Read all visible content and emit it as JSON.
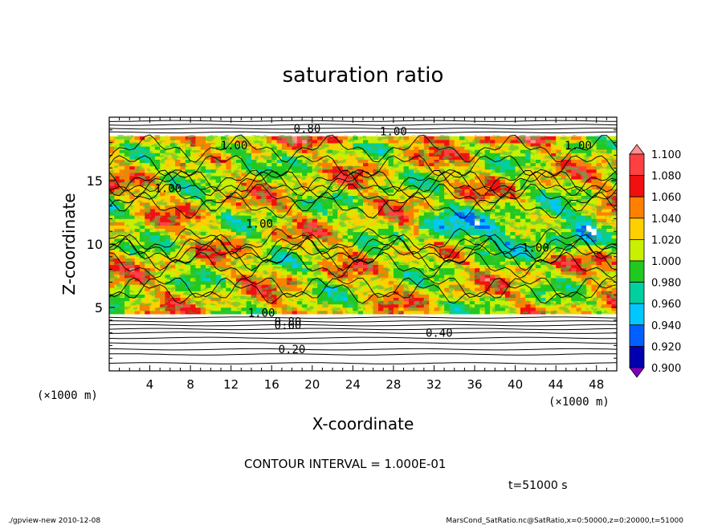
{
  "chart_data": {
    "type": "heatmap",
    "title": "saturation ratio",
    "xlabel": "X-coordinate",
    "ylabel": "Z-coordinate",
    "x_unit_left": "(×1000 m)",
    "x_unit_right": "(×1000 m)",
    "xlim": [
      0,
      50
    ],
    "ylim": [
      0,
      20
    ],
    "x_ticks": [
      "4",
      "8",
      "12",
      "16",
      "20",
      "24",
      "28",
      "32",
      "36",
      "40",
      "44",
      "48"
    ],
    "y_ticks": [
      "5",
      "10",
      "15"
    ],
    "contour_interval": "CONTOUR INTERVAL = 1.000E-01",
    "time_label": "t=51000 s",
    "contour_labels": [
      {
        "text": "0.20",
        "x": 18.0,
        "y": 1.7
      },
      {
        "text": "0.40",
        "x": 32.5,
        "y": 3.0
      },
      {
        "text": "0.60",
        "x": 17.6,
        "y": 3.6
      },
      {
        "text": "0.80",
        "x": 17.6,
        "y": 3.9
      },
      {
        "text": "0.80",
        "x": 19.5,
        "y": 19.1
      },
      {
        "text": "1.00",
        "x": 28.0,
        "y": 18.9
      },
      {
        "text": "1.00",
        "x": 12.3,
        "y": 17.8
      },
      {
        "text": "1.00",
        "x": 46.2,
        "y": 17.8
      },
      {
        "text": "1.00",
        "x": 5.8,
        "y": 14.4
      },
      {
        "text": "1.00",
        "x": 14.8,
        "y": 11.6
      },
      {
        "text": "1.00",
        "x": 42.0,
        "y": 9.7
      },
      {
        "text": "1.00",
        "x": 15.0,
        "y": 4.6
      }
    ],
    "colorbar": {
      "levels": [
        "1.100",
        "1.080",
        "1.060",
        "1.040",
        "1.020",
        "1.000",
        "0.980",
        "0.960",
        "0.940",
        "0.920",
        "0.900"
      ],
      "colors": [
        "#ff9090",
        "#ff4040",
        "#f01010",
        "#ff8000",
        "#ffd000",
        "#c8f000",
        "#20c820",
        "#00d0a0",
        "#00c8ff",
        "#0060ff",
        "#0000b0",
        "#8000c0"
      ]
    }
  },
  "footer": {
    "left": "./gpview-new  2010-12-08",
    "right": "MarsCond_SatRatio.nc@SatRatio,x=0:50000,z=0:20000,t=51000"
  }
}
